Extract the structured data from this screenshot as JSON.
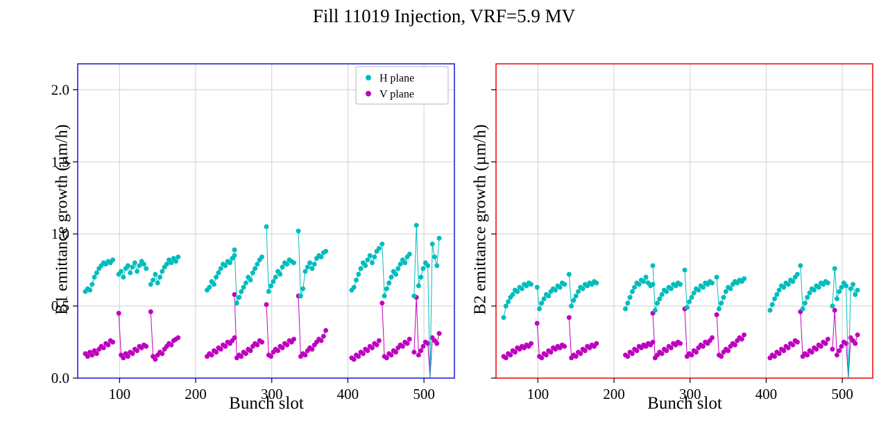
{
  "title": "Fill 11019 Injection, VRF=5.9 MV",
  "chart_data": {
    "type": "scatter",
    "title": "Fill 11019 Injection, VRF=5.9 MV",
    "xlabel": "Bunch slot",
    "xlim": [
      45,
      540
    ],
    "ylim": [
      0,
      2.18
    ],
    "xticks": [
      100,
      200,
      300,
      400,
      500
    ],
    "ytick_values": [
      0,
      0.5,
      1.0,
      1.5,
      2.0
    ],
    "ytick_labels": [
      "0.0",
      "0.5",
      "1.0",
      "1.5",
      "2.0"
    ],
    "grid": true,
    "colors": {
      "h_plane": "#00bdbd",
      "v_plane": "#bf00bf",
      "grid": "#cfcfcf",
      "b1_spine": "#2222dd",
      "b2_spine": "#ee1111",
      "tick": "#000000"
    },
    "legend": {
      "position": "upper right",
      "entries": [
        {
          "label": "H plane",
          "color": "#00bdbd"
        },
        {
          "label": "V plane",
          "color": "#bf00bf"
        }
      ]
    },
    "plots": [
      {
        "name": "B1",
        "ylabel": "B1 emittance growth (µm/h)",
        "spine_color": "#2222dd",
        "show_ytick_labels": true,
        "legend": true,
        "batches": [
          {
            "start": 55,
            "step": 3,
            "h": [
              0.6,
              0.62,
              0.61,
              0.65,
              0.7,
              0.73,
              0.76,
              0.78,
              0.8,
              0.79,
              0.81,
              0.8,
              0.82
            ],
            "v": [
              0.17,
              0.15,
              0.18,
              0.16,
              0.19,
              0.17,
              0.2,
              0.22,
              0.21,
              0.24,
              0.23,
              0.26,
              0.25
            ]
          },
          {
            "start": 99,
            "step": 3,
            "h": [
              0.72,
              0.74,
              0.7,
              0.76,
              0.78,
              0.73,
              0.77,
              0.8,
              0.74,
              0.78,
              0.81,
              0.79,
              0.76
            ],
            "v": [
              0.45,
              0.16,
              0.14,
              0.17,
              0.15,
              0.18,
              0.17,
              0.2,
              0.19,
              0.22,
              0.21,
              0.23,
              0.22
            ]
          },
          {
            "start": 141,
            "step": 3,
            "h": [
              0.65,
              0.68,
              0.72,
              0.66,
              0.7,
              0.74,
              0.77,
              0.79,
              0.82,
              0.8,
              0.83,
              0.81,
              0.84
            ],
            "v": [
              0.46,
              0.15,
              0.13,
              0.16,
              0.18,
              0.17,
              0.2,
              0.22,
              0.24,
              0.23,
              0.26,
              0.27,
              0.28
            ]
          },
          {
            "start": 215,
            "step": 3,
            "h": [
              0.61,
              0.63,
              0.67,
              0.65,
              0.7,
              0.73,
              0.76,
              0.79,
              0.78,
              0.81,
              0.8,
              0.83,
              0.85
            ],
            "v": [
              0.15,
              0.17,
              0.16,
              0.19,
              0.18,
              0.21,
              0.2,
              0.23,
              0.22,
              0.25,
              0.24,
              0.26,
              0.28
            ]
          },
          {
            "start": 251,
            "step": 3,
            "h": [
              0.89,
              0.52,
              0.56,
              0.6,
              0.63,
              0.66,
              0.7,
              0.68,
              0.73,
              0.76,
              0.79,
              0.82,
              0.84
            ],
            "v": [
              0.58,
              0.14,
              0.16,
              0.15,
              0.18,
              0.17,
              0.2,
              0.19,
              0.22,
              0.24,
              0.23,
              0.26,
              0.25
            ]
          },
          {
            "start": 293,
            "step": 3,
            "h": [
              1.05,
              0.6,
              0.64,
              0.67,
              0.7,
              0.74,
              0.72,
              0.77,
              0.8,
              0.79,
              0.82,
              0.81,
              0.8
            ],
            "v": [
              0.51,
              0.16,
              0.15,
              0.18,
              0.2,
              0.19,
              0.22,
              0.21,
              0.24,
              0.23,
              0.26,
              0.25,
              0.27
            ]
          },
          {
            "start": 335,
            "step": 3,
            "h": [
              1.02,
              0.57,
              0.62,
              0.74,
              0.77,
              0.8,
              0.76,
              0.79,
              0.83,
              0.85,
              0.84,
              0.87,
              0.88
            ],
            "v": [
              0.57,
              0.15,
              0.17,
              0.16,
              0.19,
              0.21,
              0.2,
              0.23,
              0.25,
              0.27,
              0.26,
              0.29,
              0.33
            ]
          },
          {
            "start": 405,
            "step": 3,
            "h": [
              0.61,
              0.63,
              0.68,
              0.72,
              0.76,
              0.8,
              0.78,
              0.82,
              0.85,
              0.8,
              0.84,
              0.88,
              0.9
            ],
            "v": [
              0.14,
              0.13,
              0.16,
              0.15,
              0.18,
              0.17,
              0.2,
              0.19,
              0.22,
              0.21,
              0.24,
              0.23,
              0.26
            ]
          },
          {
            "start": 445,
            "step": 3,
            "h": [
              0.93,
              0.57,
              0.62,
              0.66,
              0.7,
              0.74,
              0.72,
              0.76,
              0.79,
              0.82,
              0.8,
              0.84,
              0.86
            ],
            "v": [
              0.52,
              0.15,
              0.14,
              0.17,
              0.16,
              0.19,
              0.18,
              0.21,
              0.23,
              0.22,
              0.25,
              0.24,
              0.27
            ]
          },
          {
            "start": 487,
            "step": 3,
            "h": [
              0.57,
              1.06,
              0.64,
              0.7,
              0.76,
              0.8,
              0.78,
              0.0,
              0.93,
              0.84,
              0.78,
              0.97
            ],
            "v": [
              0.18,
              0.56,
              0.16,
              0.19,
              0.22,
              0.25,
              0.24,
              0.0,
              0.28,
              0.26,
              0.24,
              0.31
            ]
          }
        ]
      },
      {
        "name": "B2",
        "ylabel": "B2 emittance growth (µm/h)",
        "spine_color": "#ee1111",
        "show_ytick_labels": false,
        "legend": false,
        "batches": [
          {
            "start": 55,
            "step": 3,
            "h": [
              0.42,
              0.5,
              0.53,
              0.56,
              0.58,
              0.61,
              0.6,
              0.63,
              0.62,
              0.65,
              0.64,
              0.66,
              0.65
            ],
            "v": [
              0.15,
              0.14,
              0.17,
              0.16,
              0.19,
              0.18,
              0.21,
              0.2,
              0.22,
              0.21,
              0.23,
              0.22,
              0.24
            ]
          },
          {
            "start": 99,
            "step": 3,
            "h": [
              0.63,
              0.48,
              0.52,
              0.55,
              0.58,
              0.57,
              0.6,
              0.62,
              0.61,
              0.64,
              0.63,
              0.66,
              0.65
            ],
            "v": [
              0.38,
              0.15,
              0.14,
              0.17,
              0.16,
              0.19,
              0.18,
              0.21,
              0.2,
              0.22,
              0.21,
              0.23,
              0.22
            ]
          },
          {
            "start": 141,
            "step": 3,
            "h": [
              0.72,
              0.5,
              0.54,
              0.57,
              0.6,
              0.63,
              0.62,
              0.65,
              0.64,
              0.66,
              0.65,
              0.67,
              0.66
            ],
            "v": [
              0.42,
              0.14,
              0.16,
              0.15,
              0.18,
              0.17,
              0.2,
              0.19,
              0.22,
              0.21,
              0.23,
              0.22,
              0.24
            ]
          },
          {
            "start": 215,
            "step": 3,
            "h": [
              0.48,
              0.52,
              0.56,
              0.6,
              0.63,
              0.66,
              0.65,
              0.68,
              0.67,
              0.7,
              0.66,
              0.64,
              0.65
            ],
            "v": [
              0.16,
              0.15,
              0.18,
              0.17,
              0.2,
              0.19,
              0.22,
              0.21,
              0.23,
              0.22,
              0.24,
              0.23,
              0.25
            ]
          },
          {
            "start": 251,
            "step": 3,
            "h": [
              0.78,
              0.47,
              0.52,
              0.55,
              0.58,
              0.61,
              0.6,
              0.63,
              0.62,
              0.65,
              0.64,
              0.66,
              0.65
            ],
            "v": [
              0.45,
              0.14,
              0.16,
              0.18,
              0.17,
              0.2,
              0.19,
              0.22,
              0.21,
              0.24,
              0.23,
              0.25,
              0.24
            ]
          },
          {
            "start": 293,
            "step": 3,
            "h": [
              0.75,
              0.49,
              0.53,
              0.56,
              0.59,
              0.62,
              0.61,
              0.64,
              0.63,
              0.66,
              0.65,
              0.67,
              0.66
            ],
            "v": [
              0.48,
              0.15,
              0.17,
              0.16,
              0.19,
              0.18,
              0.21,
              0.23,
              0.22,
              0.25,
              0.24,
              0.26,
              0.28
            ]
          },
          {
            "start": 335,
            "step": 3,
            "h": [
              0.7,
              0.48,
              0.52,
              0.56,
              0.6,
              0.63,
              0.62,
              0.65,
              0.67,
              0.66,
              0.68,
              0.67,
              0.69
            ],
            "v": [
              0.44,
              0.16,
              0.15,
              0.18,
              0.2,
              0.19,
              0.22,
              0.24,
              0.23,
              0.26,
              0.28,
              0.27,
              0.3
            ]
          },
          {
            "start": 405,
            "step": 3,
            "h": [
              0.47,
              0.51,
              0.55,
              0.58,
              0.61,
              0.64,
              0.63,
              0.66,
              0.65,
              0.68,
              0.67,
              0.7,
              0.72
            ],
            "v": [
              0.14,
              0.16,
              0.15,
              0.18,
              0.17,
              0.2,
              0.19,
              0.22,
              0.21,
              0.24,
              0.23,
              0.26,
              0.25
            ]
          },
          {
            "start": 445,
            "step": 3,
            "h": [
              0.78,
              0.48,
              0.52,
              0.56,
              0.59,
              0.62,
              0.61,
              0.64,
              0.63,
              0.66,
              0.65,
              0.67,
              0.66
            ],
            "v": [
              0.46,
              0.15,
              0.17,
              0.16,
              0.19,
              0.18,
              0.21,
              0.2,
              0.23,
              0.22,
              0.25,
              0.24,
              0.27
            ]
          },
          {
            "start": 487,
            "step": 3,
            "h": [
              0.5,
              0.76,
              0.55,
              0.6,
              0.63,
              0.66,
              0.64,
              0.0,
              0.62,
              0.65,
              0.58,
              0.61
            ],
            "v": [
              0.2,
              0.47,
              0.16,
              0.19,
              0.22,
              0.25,
              0.24,
              0.0,
              0.28,
              0.26,
              0.24,
              0.3
            ]
          }
        ]
      }
    ]
  }
}
